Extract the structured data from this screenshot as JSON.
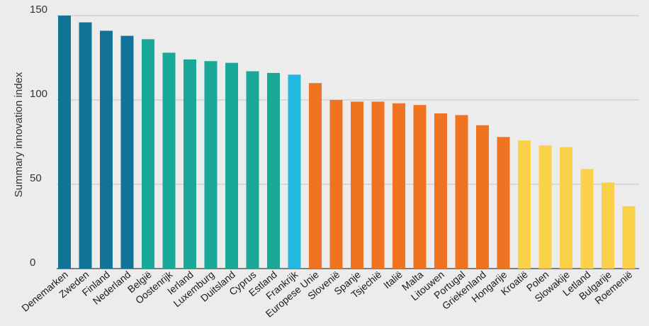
{
  "chart_data": {
    "type": "bar",
    "title": "",
    "xlabel": "",
    "ylabel": "Summary innovation index",
    "ylim": [
      0,
      150
    ],
    "yticks": [
      0,
      50,
      100,
      150
    ],
    "grid": true,
    "categories": [
      "Denemarken",
      "Zweden",
      "Finland",
      "Nederland",
      "België",
      "Oostenrijk",
      "Ierland",
      "Luxemburg",
      "Duitsland",
      "Cyprus",
      "Estland",
      "Frankrijk",
      "Europese Unie",
      "Slovenië",
      "Spanje",
      "Tsjechië",
      "Italië",
      "Malta",
      "Litouwen",
      "Portugal",
      "Griekenland",
      "Hongarije",
      "Kroatië",
      "Polen",
      "Slowakije",
      "Letland",
      "Bulgarije",
      "Roemenië"
    ],
    "values": [
      150,
      146,
      141,
      138,
      136,
      128,
      124,
      123,
      122,
      117,
      116,
      115,
      110,
      100,
      99,
      99,
      98,
      97,
      92,
      91,
      85,
      78,
      76,
      73,
      72,
      59,
      51,
      37
    ],
    "colors": [
      "#127398",
      "#127398",
      "#127398",
      "#127398",
      "#1aa898",
      "#1aa898",
      "#1aa898",
      "#1aa898",
      "#1aa898",
      "#1aa898",
      "#1aa898",
      "#22b8e0",
      "#f07322",
      "#f07322",
      "#f07322",
      "#f07322",
      "#f07322",
      "#f07322",
      "#f07322",
      "#f07322",
      "#f07322",
      "#f07322",
      "#fcd14a",
      "#fcd14a",
      "#fcd14a",
      "#fcd14a",
      "#fcd14a",
      "#fcd14a"
    ],
    "grid_color": "#c4c4c4",
    "axis_color": "#5a5a5a",
    "background": "#ececec"
  }
}
